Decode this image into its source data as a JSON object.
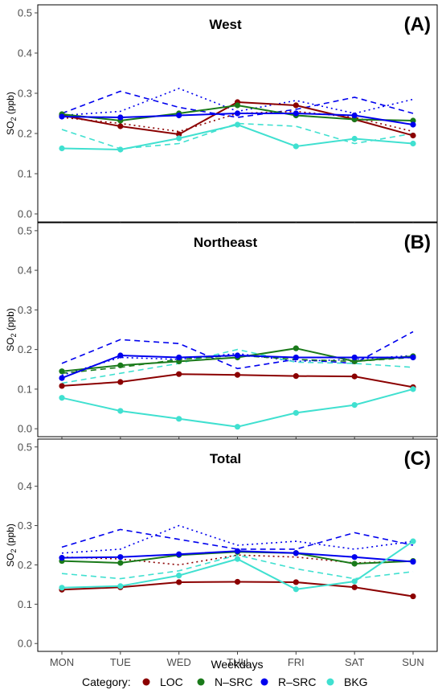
{
  "xlabel": "Weekdays",
  "ylabel_main": "SO",
  "ylabel_sub": "2",
  "ylabel_unit": " (ppb)",
  "legend": {
    "title": "Category:",
    "items": [
      {
        "label": "LOC",
        "color": "#8b0000"
      },
      {
        "label": "N–SRC",
        "color": "#1a7a1a"
      },
      {
        "label": "R–SRC",
        "color": "#0000ee"
      },
      {
        "label": "BKG",
        "color": "#40e0d0"
      }
    ]
  },
  "chart_data": [
    {
      "type": "line",
      "title": "West",
      "panel_label": "(A)",
      "categories": [
        "MON",
        "TUE",
        "WED",
        "THU",
        "FRI",
        "SAT",
        "SUN"
      ],
      "yticks": [
        "0.0",
        "0.1",
        "0.2",
        "0.3",
        "0.4",
        "0.5"
      ],
      "ylim": [
        -0.02,
        0.52
      ],
      "series": [
        {
          "name": "LOC",
          "style": "solid",
          "values": [
            0.245,
            0.218,
            0.198,
            0.278,
            0.27,
            0.235,
            0.195
          ]
        },
        {
          "name": "N–SRC",
          "style": "solid",
          "values": [
            0.248,
            0.232,
            0.25,
            0.27,
            0.245,
            0.235,
            0.232
          ]
        },
        {
          "name": "R–SRC",
          "style": "solid",
          "values": [
            0.242,
            0.24,
            0.245,
            0.25,
            0.25,
            0.245,
            0.222
          ]
        },
        {
          "name": "BKG",
          "style": "solid",
          "values": [
            0.163,
            0.16,
            0.188,
            0.222,
            0.168,
            0.187,
            0.175
          ]
        },
        {
          "name": "R–SRC",
          "style": "dashed",
          "values": [
            0.25,
            0.305,
            0.265,
            0.24,
            0.26,
            0.29,
            0.25
          ]
        },
        {
          "name": "R–SRC",
          "style": "dotted",
          "values": [
            0.245,
            0.255,
            0.312,
            0.255,
            0.282,
            0.25,
            0.285
          ]
        },
        {
          "name": "BKG",
          "style": "dashed",
          "values": [
            0.21,
            0.162,
            0.175,
            0.225,
            0.218,
            0.175,
            0.2
          ]
        },
        {
          "name": "LOC",
          "style": "dotted",
          "values": [
            0.24,
            0.225,
            0.205,
            0.25,
            0.255,
            0.24,
            0.205
          ]
        }
      ]
    },
    {
      "type": "line",
      "title": "Northeast",
      "panel_label": "(B)",
      "categories": [
        "MON",
        "TUE",
        "WED",
        "THU",
        "FRI",
        "SAT",
        "SUN"
      ],
      "yticks": [
        "0.0",
        "0.1",
        "0.2",
        "0.3",
        "0.4",
        "0.5"
      ],
      "ylim": [
        -0.02,
        0.52
      ],
      "series": [
        {
          "name": "LOC",
          "style": "solid",
          "values": [
            0.108,
            0.118,
            0.138,
            0.136,
            0.133,
            0.132,
            0.105
          ]
        },
        {
          "name": "N–SRC",
          "style": "solid",
          "values": [
            0.145,
            0.16,
            0.17,
            0.18,
            0.203,
            0.17,
            0.183
          ]
        },
        {
          "name": "R–SRC",
          "style": "solid",
          "values": [
            0.128,
            0.185,
            0.18,
            0.185,
            0.18,
            0.18,
            0.18
          ]
        },
        {
          "name": "BKG",
          "style": "solid",
          "values": [
            0.078,
            0.045,
            0.025,
            0.005,
            0.04,
            0.06,
            0.1
          ]
        },
        {
          "name": "R–SRC",
          "style": "dashed",
          "values": [
            0.165,
            0.225,
            0.215,
            0.152,
            0.175,
            0.165,
            0.245
          ]
        },
        {
          "name": "R–SRC",
          "style": "dotted",
          "values": [
            0.135,
            0.18,
            0.175,
            0.19,
            0.17,
            0.175,
            0.185
          ]
        },
        {
          "name": "BKG",
          "style": "dashed",
          "values": [
            0.115,
            0.14,
            0.165,
            0.2,
            0.168,
            0.165,
            0.155
          ]
        },
        {
          "name": "N–SRC",
          "style": "dashed",
          "values": [
            0.14,
            0.155,
            0.175,
            0.185,
            0.175,
            0.17,
            0.18
          ]
        }
      ]
    },
    {
      "type": "line",
      "title": "Total",
      "panel_label": "(C)",
      "categories": [
        "MON",
        "TUE",
        "WED",
        "THU",
        "FRI",
        "SAT",
        "SUN"
      ],
      "yticks": [
        "0.0",
        "0.1",
        "0.2",
        "0.3",
        "0.4",
        "0.5"
      ],
      "ylim": [
        -0.02,
        0.52
      ],
      "series": [
        {
          "name": "LOC",
          "style": "solid",
          "values": [
            0.137,
            0.143,
            0.156,
            0.157,
            0.156,
            0.143,
            0.12
          ]
        },
        {
          "name": "N–SRC",
          "style": "solid",
          "values": [
            0.21,
            0.205,
            0.225,
            0.233,
            0.23,
            0.203,
            0.21
          ]
        },
        {
          "name": "R–SRC",
          "style": "solid",
          "values": [
            0.218,
            0.22,
            0.227,
            0.235,
            0.23,
            0.22,
            0.208
          ]
        },
        {
          "name": "BKG",
          "style": "solid",
          "values": [
            0.142,
            0.146,
            0.173,
            0.215,
            0.138,
            0.158,
            0.26
          ]
        },
        {
          "name": "R–SRC",
          "style": "dashed",
          "values": [
            0.245,
            0.29,
            0.265,
            0.24,
            0.24,
            0.282,
            0.25
          ]
        },
        {
          "name": "R–SRC",
          "style": "dotted",
          "values": [
            0.23,
            0.24,
            0.3,
            0.25,
            0.26,
            0.24,
            0.26
          ]
        },
        {
          "name": "BKG",
          "style": "dashed",
          "values": [
            0.178,
            0.165,
            0.185,
            0.225,
            0.19,
            0.165,
            0.183
          ]
        },
        {
          "name": "LOC",
          "style": "dotted",
          "values": [
            0.22,
            0.215,
            0.2,
            0.225,
            0.22,
            0.205,
            0.21
          ]
        }
      ]
    }
  ]
}
